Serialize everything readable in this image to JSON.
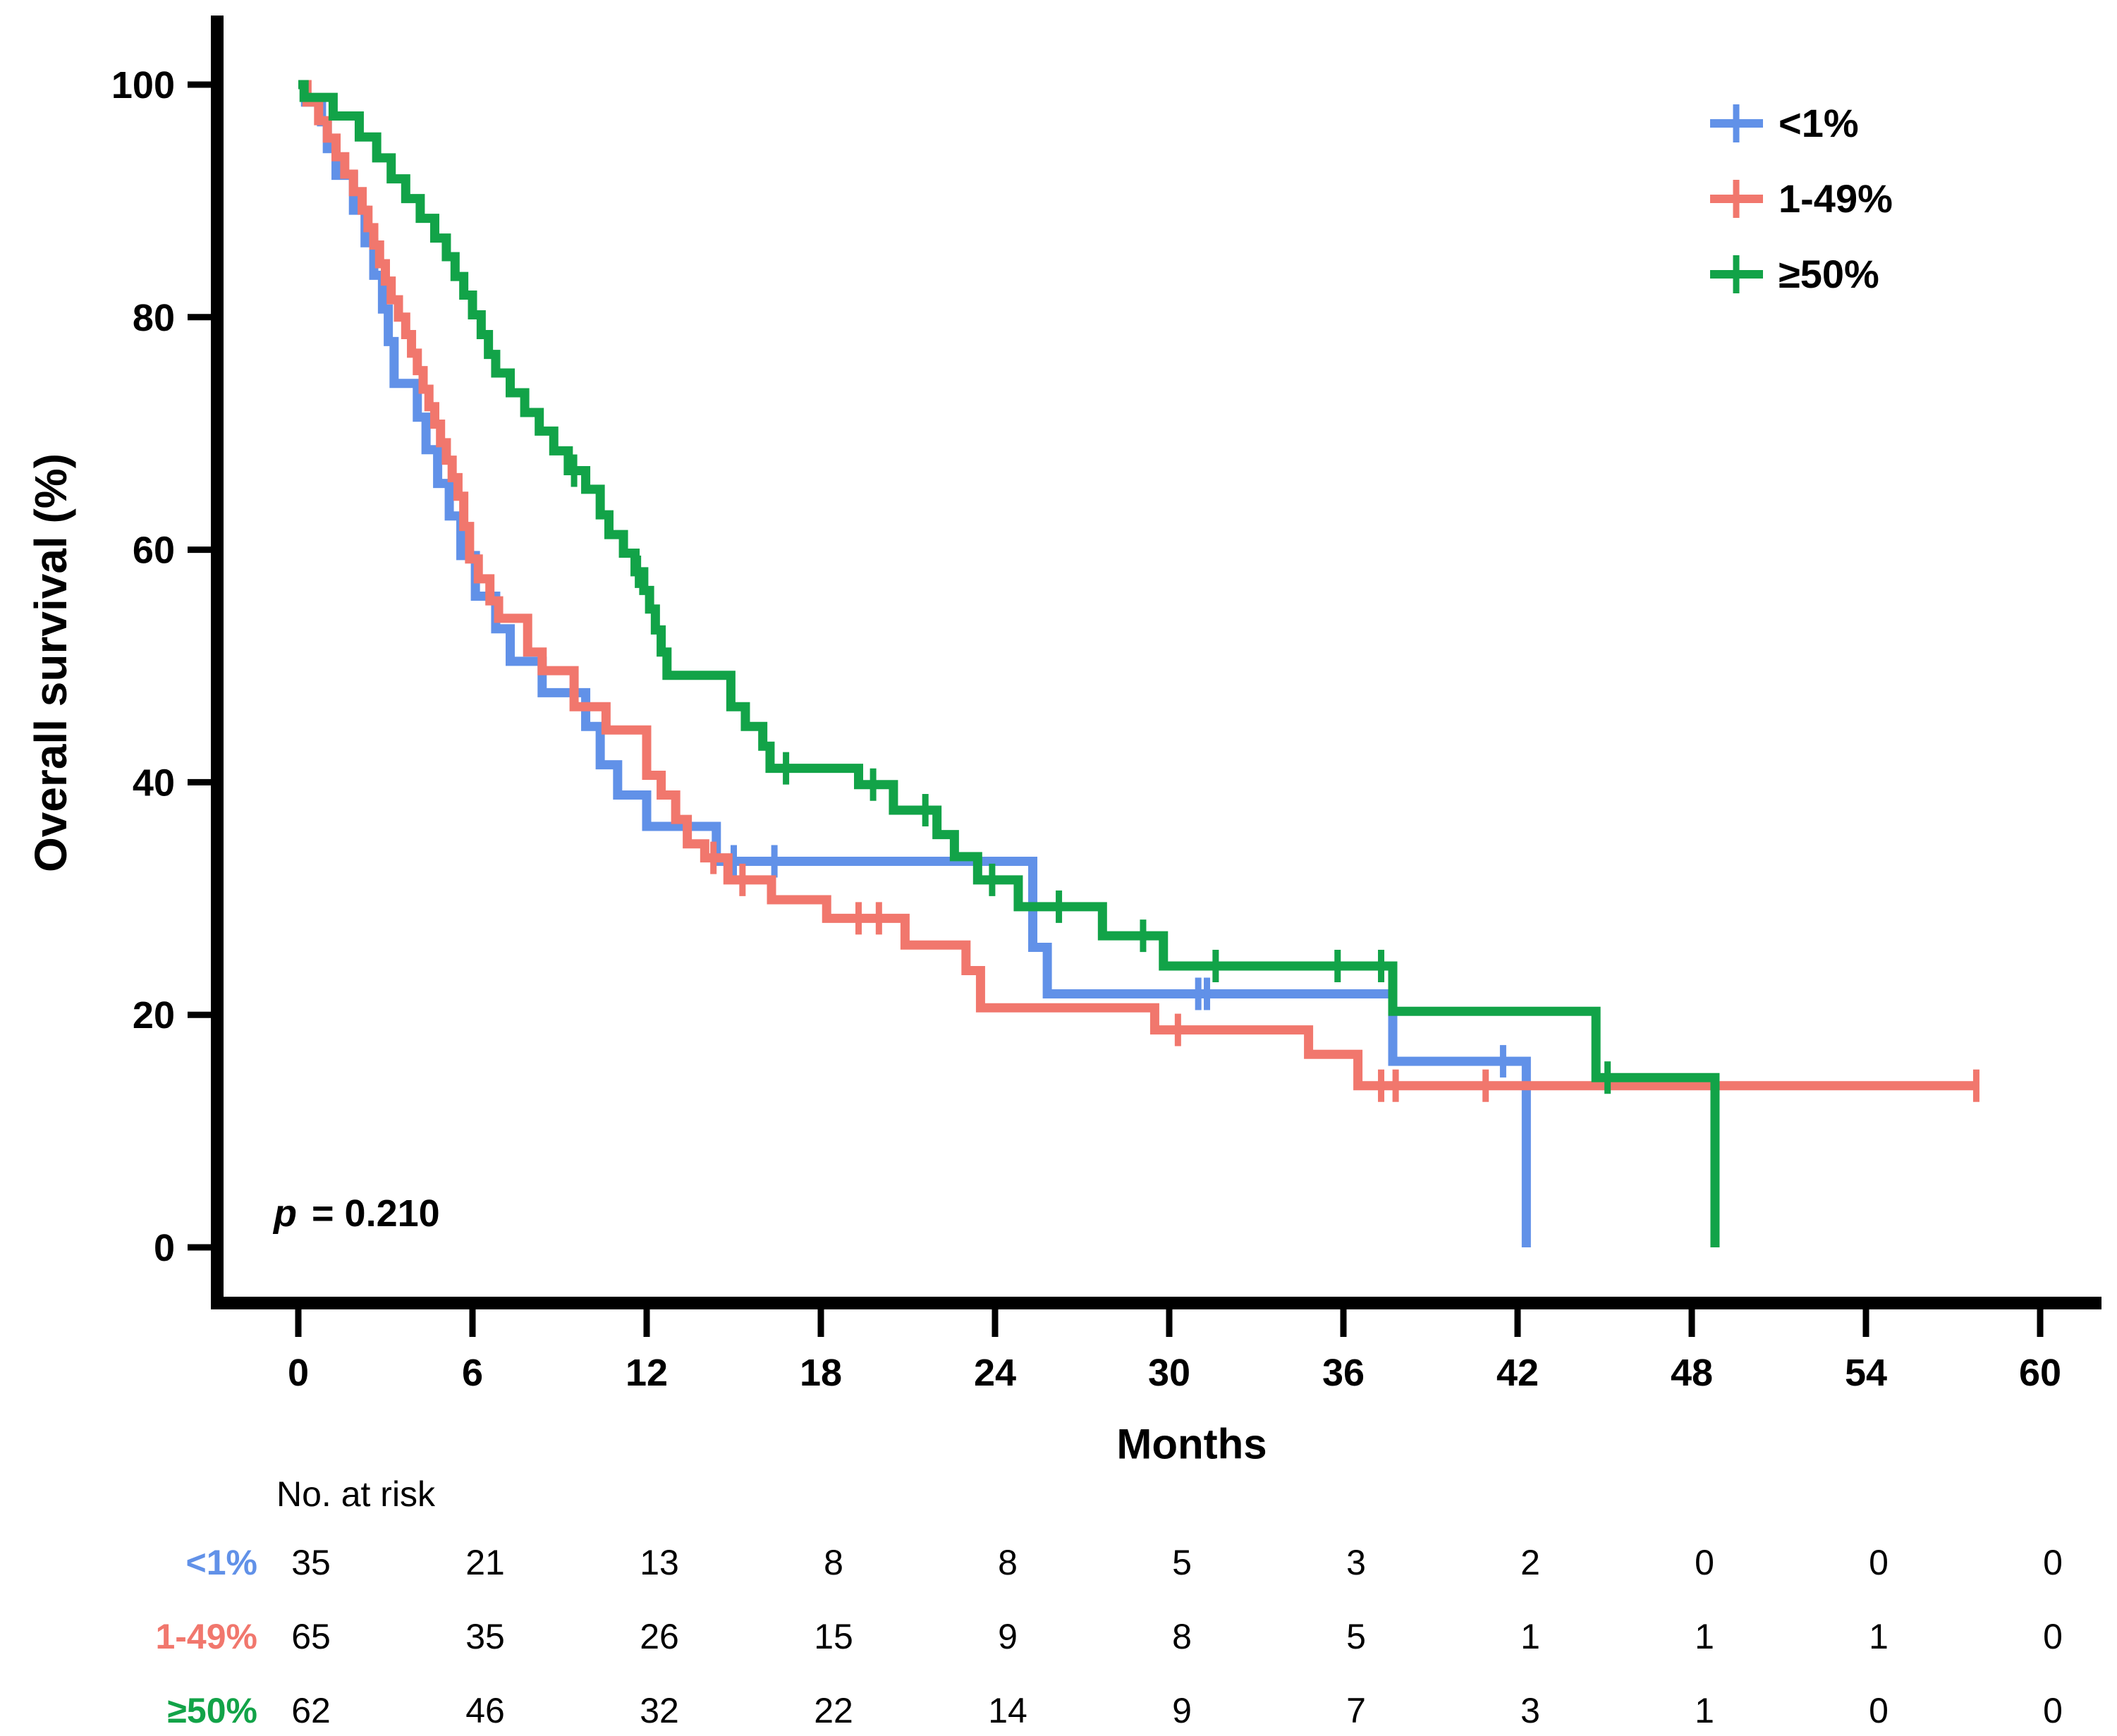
{
  "labels": {
    "ylabel": "Overall survival (%)",
    "xlabel": "Months",
    "risk_header": "No. at risk",
    "p_italic": "p",
    "p_rest": " = 0.210"
  },
  "legend": {
    "position": "top-right",
    "entries": [
      {
        "id": "lt1",
        "label": "<1%",
        "color": "#6191E8"
      },
      {
        "id": "1to49",
        "label": "1-49%",
        "color": "#F1776D"
      },
      {
        "id": "ge50",
        "label": "≥50%",
        "color": "#12A348"
      }
    ]
  },
  "chart_data": {
    "type": "line",
    "subtype": "kaplan-meier-step",
    "title": "",
    "xlabel": "Months",
    "ylabel": "Overall survival (%)",
    "xlim": [
      0,
      60
    ],
    "ylim": [
      0,
      100
    ],
    "x_ticks": [
      0,
      6,
      12,
      18,
      24,
      30,
      36,
      42,
      48,
      54,
      60
    ],
    "y_ticks": [
      0,
      20,
      40,
      60,
      80,
      100
    ],
    "grid": false,
    "p_value_text": "p = 0.210",
    "series": [
      {
        "name": "<1%",
        "id": "lt1",
        "color": "#6191E8",
        "steps": [
          [
            0,
            100
          ],
          [
            0.25,
            98.5
          ],
          [
            0.8,
            96.8
          ],
          [
            1.0,
            94.5
          ],
          [
            1.3,
            92.2
          ],
          [
            1.9,
            89.2
          ],
          [
            2.3,
            86.4
          ],
          [
            2.6,
            83.6
          ],
          [
            2.9,
            80.7
          ],
          [
            3.1,
            77.9
          ],
          [
            3.3,
            74.3
          ],
          [
            4.1,
            71.4
          ],
          [
            4.4,
            68.6
          ],
          [
            4.8,
            65.7
          ],
          [
            5.2,
            62.9
          ],
          [
            5.6,
            59.5
          ],
          [
            6.1,
            56.0
          ],
          [
            6.8,
            53.2
          ],
          [
            7.3,
            50.4
          ],
          [
            8.4,
            47.7
          ],
          [
            9.9,
            44.8
          ],
          [
            10.4,
            41.5
          ],
          [
            11.0,
            38.9
          ],
          [
            12.0,
            36.2
          ],
          [
            14.4,
            33.2
          ],
          [
            25.3,
            25.8
          ],
          [
            25.8,
            21.8
          ],
          [
            37.7,
            16.0
          ],
          [
            42.3,
            0
          ]
        ],
        "end": 42.3,
        "censors": [
          [
            15.0,
            33.2
          ],
          [
            16.4,
            33.2
          ],
          [
            31.0,
            21.8
          ],
          [
            31.3,
            21.8
          ],
          [
            41.5,
            16.0
          ]
        ]
      },
      {
        "name": "1-49%",
        "id": "1to49",
        "color": "#F1776D",
        "steps": [
          [
            0,
            100
          ],
          [
            0.3,
            98.5
          ],
          [
            0.7,
            96.9
          ],
          [
            1.0,
            95.4
          ],
          [
            1.3,
            93.8
          ],
          [
            1.6,
            92.3
          ],
          [
            1.9,
            90.8
          ],
          [
            2.2,
            89.2
          ],
          [
            2.4,
            87.7
          ],
          [
            2.6,
            86.2
          ],
          [
            2.8,
            84.6
          ],
          [
            3.0,
            83.1
          ],
          [
            3.2,
            81.5
          ],
          [
            3.45,
            80.0
          ],
          [
            3.7,
            78.5
          ],
          [
            3.9,
            76.9
          ],
          [
            4.1,
            75.4
          ],
          [
            4.3,
            73.8
          ],
          [
            4.5,
            72.3
          ],
          [
            4.7,
            70.8
          ],
          [
            4.9,
            69.2
          ],
          [
            5.1,
            67.7
          ],
          [
            5.3,
            66.2
          ],
          [
            5.5,
            64.6
          ],
          [
            5.7,
            62.0
          ],
          [
            5.9,
            59.2
          ],
          [
            6.2,
            57.5
          ],
          [
            6.6,
            55.6
          ],
          [
            6.9,
            54.1
          ],
          [
            7.9,
            51.2
          ],
          [
            8.4,
            49.6
          ],
          [
            9.5,
            46.5
          ],
          [
            10.6,
            44.5
          ],
          [
            12.0,
            40.6
          ],
          [
            12.5,
            38.9
          ],
          [
            13.0,
            36.8
          ],
          [
            13.4,
            34.7
          ],
          [
            14.0,
            33.5
          ],
          [
            14.8,
            31.6
          ],
          [
            16.3,
            29.9
          ],
          [
            18.2,
            28.3
          ],
          [
            20.9,
            26.0
          ],
          [
            23.0,
            23.8
          ],
          [
            23.5,
            20.6
          ],
          [
            29.5,
            18.7
          ],
          [
            34.8,
            16.6
          ],
          [
            36.5,
            13.9
          ]
        ],
        "end": 57.8,
        "censors": [
          [
            14.3,
            33.5
          ],
          [
            15.3,
            31.6
          ],
          [
            19.3,
            28.3
          ],
          [
            20.0,
            28.3
          ],
          [
            30.3,
            18.7
          ],
          [
            37.3,
            13.9
          ],
          [
            37.8,
            13.9
          ],
          [
            40.9,
            13.9
          ],
          [
            57.8,
            13.9
          ]
        ]
      },
      {
        "name": "≥50%",
        "id": "ge50",
        "color": "#12A348",
        "steps": [
          [
            0,
            100
          ],
          [
            0.2,
            98.9
          ],
          [
            1.2,
            97.3
          ],
          [
            2.1,
            95.5
          ],
          [
            2.7,
            93.7
          ],
          [
            3.2,
            91.9
          ],
          [
            3.7,
            90.2
          ],
          [
            4.2,
            88.5
          ],
          [
            4.7,
            86.8
          ],
          [
            5.1,
            85.2
          ],
          [
            5.4,
            83.5
          ],
          [
            5.7,
            81.9
          ],
          [
            6.0,
            80.2
          ],
          [
            6.3,
            78.5
          ],
          [
            6.55,
            76.8
          ],
          [
            6.8,
            75.2
          ],
          [
            7.3,
            73.5
          ],
          [
            7.8,
            71.8
          ],
          [
            8.3,
            70.2
          ],
          [
            8.8,
            68.5
          ],
          [
            9.3,
            66.8
          ],
          [
            9.9,
            65.2
          ],
          [
            10.4,
            63.0
          ],
          [
            10.7,
            61.3
          ],
          [
            11.2,
            59.7
          ],
          [
            11.6,
            58.1
          ],
          [
            11.9,
            56.5
          ],
          [
            12.1,
            54.9
          ],
          [
            12.3,
            53.1
          ],
          [
            12.5,
            51.2
          ],
          [
            12.7,
            49.2
          ],
          [
            14.9,
            46.5
          ],
          [
            15.4,
            44.8
          ],
          [
            16.0,
            43.1
          ],
          [
            16.25,
            41.2
          ],
          [
            19.3,
            39.8
          ],
          [
            20.5,
            37.6
          ],
          [
            22.0,
            35.5
          ],
          [
            22.6,
            33.6
          ],
          [
            23.4,
            31.6
          ],
          [
            24.8,
            29.3
          ],
          [
            27.7,
            26.8
          ],
          [
            29.8,
            24.2
          ],
          [
            37.7,
            20.3
          ],
          [
            44.7,
            14.6
          ],
          [
            48.8,
            0
          ]
        ],
        "end": 48.8,
        "censors": [
          [
            9.5,
            66.8
          ],
          [
            11.7,
            58.1
          ],
          [
            16.8,
            41.2
          ],
          [
            19.8,
            39.8
          ],
          [
            21.6,
            37.6
          ],
          [
            23.9,
            31.6
          ],
          [
            26.2,
            29.3
          ],
          [
            29.1,
            26.8
          ],
          [
            31.6,
            24.2
          ],
          [
            35.8,
            24.2
          ],
          [
            37.3,
            24.2
          ],
          [
            45.1,
            14.6
          ]
        ]
      }
    ],
    "risk_table": {
      "title": "No. at risk",
      "months": [
        0,
        6,
        12,
        18,
        24,
        30,
        36,
        42,
        48,
        54,
        60
      ],
      "rows": [
        {
          "id": "lt1",
          "label": "<1%",
          "color": "#6191E8",
          "values": [
            35,
            21,
            13,
            8,
            8,
            5,
            3,
            2,
            0,
            0,
            0
          ]
        },
        {
          "id": "1to49",
          "label": "1-49%",
          "color": "#F1776D",
          "values": [
            65,
            35,
            26,
            15,
            9,
            8,
            5,
            1,
            1,
            1,
            0
          ]
        },
        {
          "id": "ge50",
          "label": "≥50%",
          "color": "#12A348",
          "values": [
            62,
            46,
            32,
            22,
            14,
            9,
            7,
            3,
            1,
            0,
            0
          ]
        }
      ]
    }
  }
}
